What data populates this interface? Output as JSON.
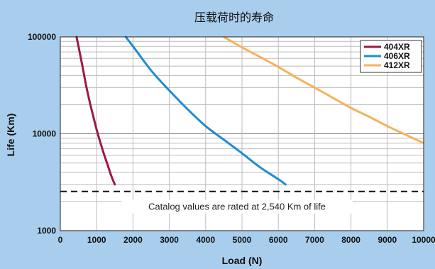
{
  "chart_data": {
    "type": "line",
    "title": "压载荷时的寿命",
    "xlabel": "Load (N)",
    "ylabel": "Life (Km)",
    "xlim": [
      0,
      10000
    ],
    "ylim": [
      1000,
      100000
    ],
    "yscale": "log",
    "grid": true,
    "legend_position": "top-right",
    "x_ticks": [
      "0",
      "1000",
      "2000",
      "3000",
      "4000",
      "5000",
      "6000",
      "7000",
      "8000",
      "9000",
      "10000"
    ],
    "y_ticks": [
      "1000",
      "10000",
      "100000"
    ],
    "series": [
      {
        "name": "404XR",
        "color": "#9b1b42",
        "x": [
          445,
          500,
          600,
          700,
          800,
          900,
          1000,
          1100,
          1200,
          1300,
          1400,
          1500
        ],
        "y": [
          100000,
          80000,
          52000,
          33000,
          22000,
          15500,
          11000,
          8200,
          6200,
          4800,
          3700,
          3000
        ]
      },
      {
        "name": "406XR",
        "color": "#1f8ecf",
        "x": [
          1800,
          2000,
          2500,
          3000,
          3500,
          4000,
          4500,
          5000,
          5500,
          6000,
          6200
        ],
        "y": [
          100000,
          80000,
          45000,
          28000,
          18000,
          12000,
          8700,
          6300,
          4500,
          3400,
          3000
        ]
      },
      {
        "name": "412XR",
        "color": "#f7b15d",
        "x": [
          4500,
          5000,
          5500,
          6000,
          6500,
          7000,
          7500,
          8000,
          8500,
          9000,
          9500,
          10000
        ],
        "y": [
          100000,
          78000,
          62000,
          49000,
          38000,
          30000,
          23500,
          18500,
          15000,
          12000,
          9800,
          8000
        ]
      }
    ],
    "reference_line": {
      "y": 2540,
      "style": "dashed",
      "color": "#111111",
      "annotation": "Catalog values are rated at 2,540 Km of life"
    }
  }
}
